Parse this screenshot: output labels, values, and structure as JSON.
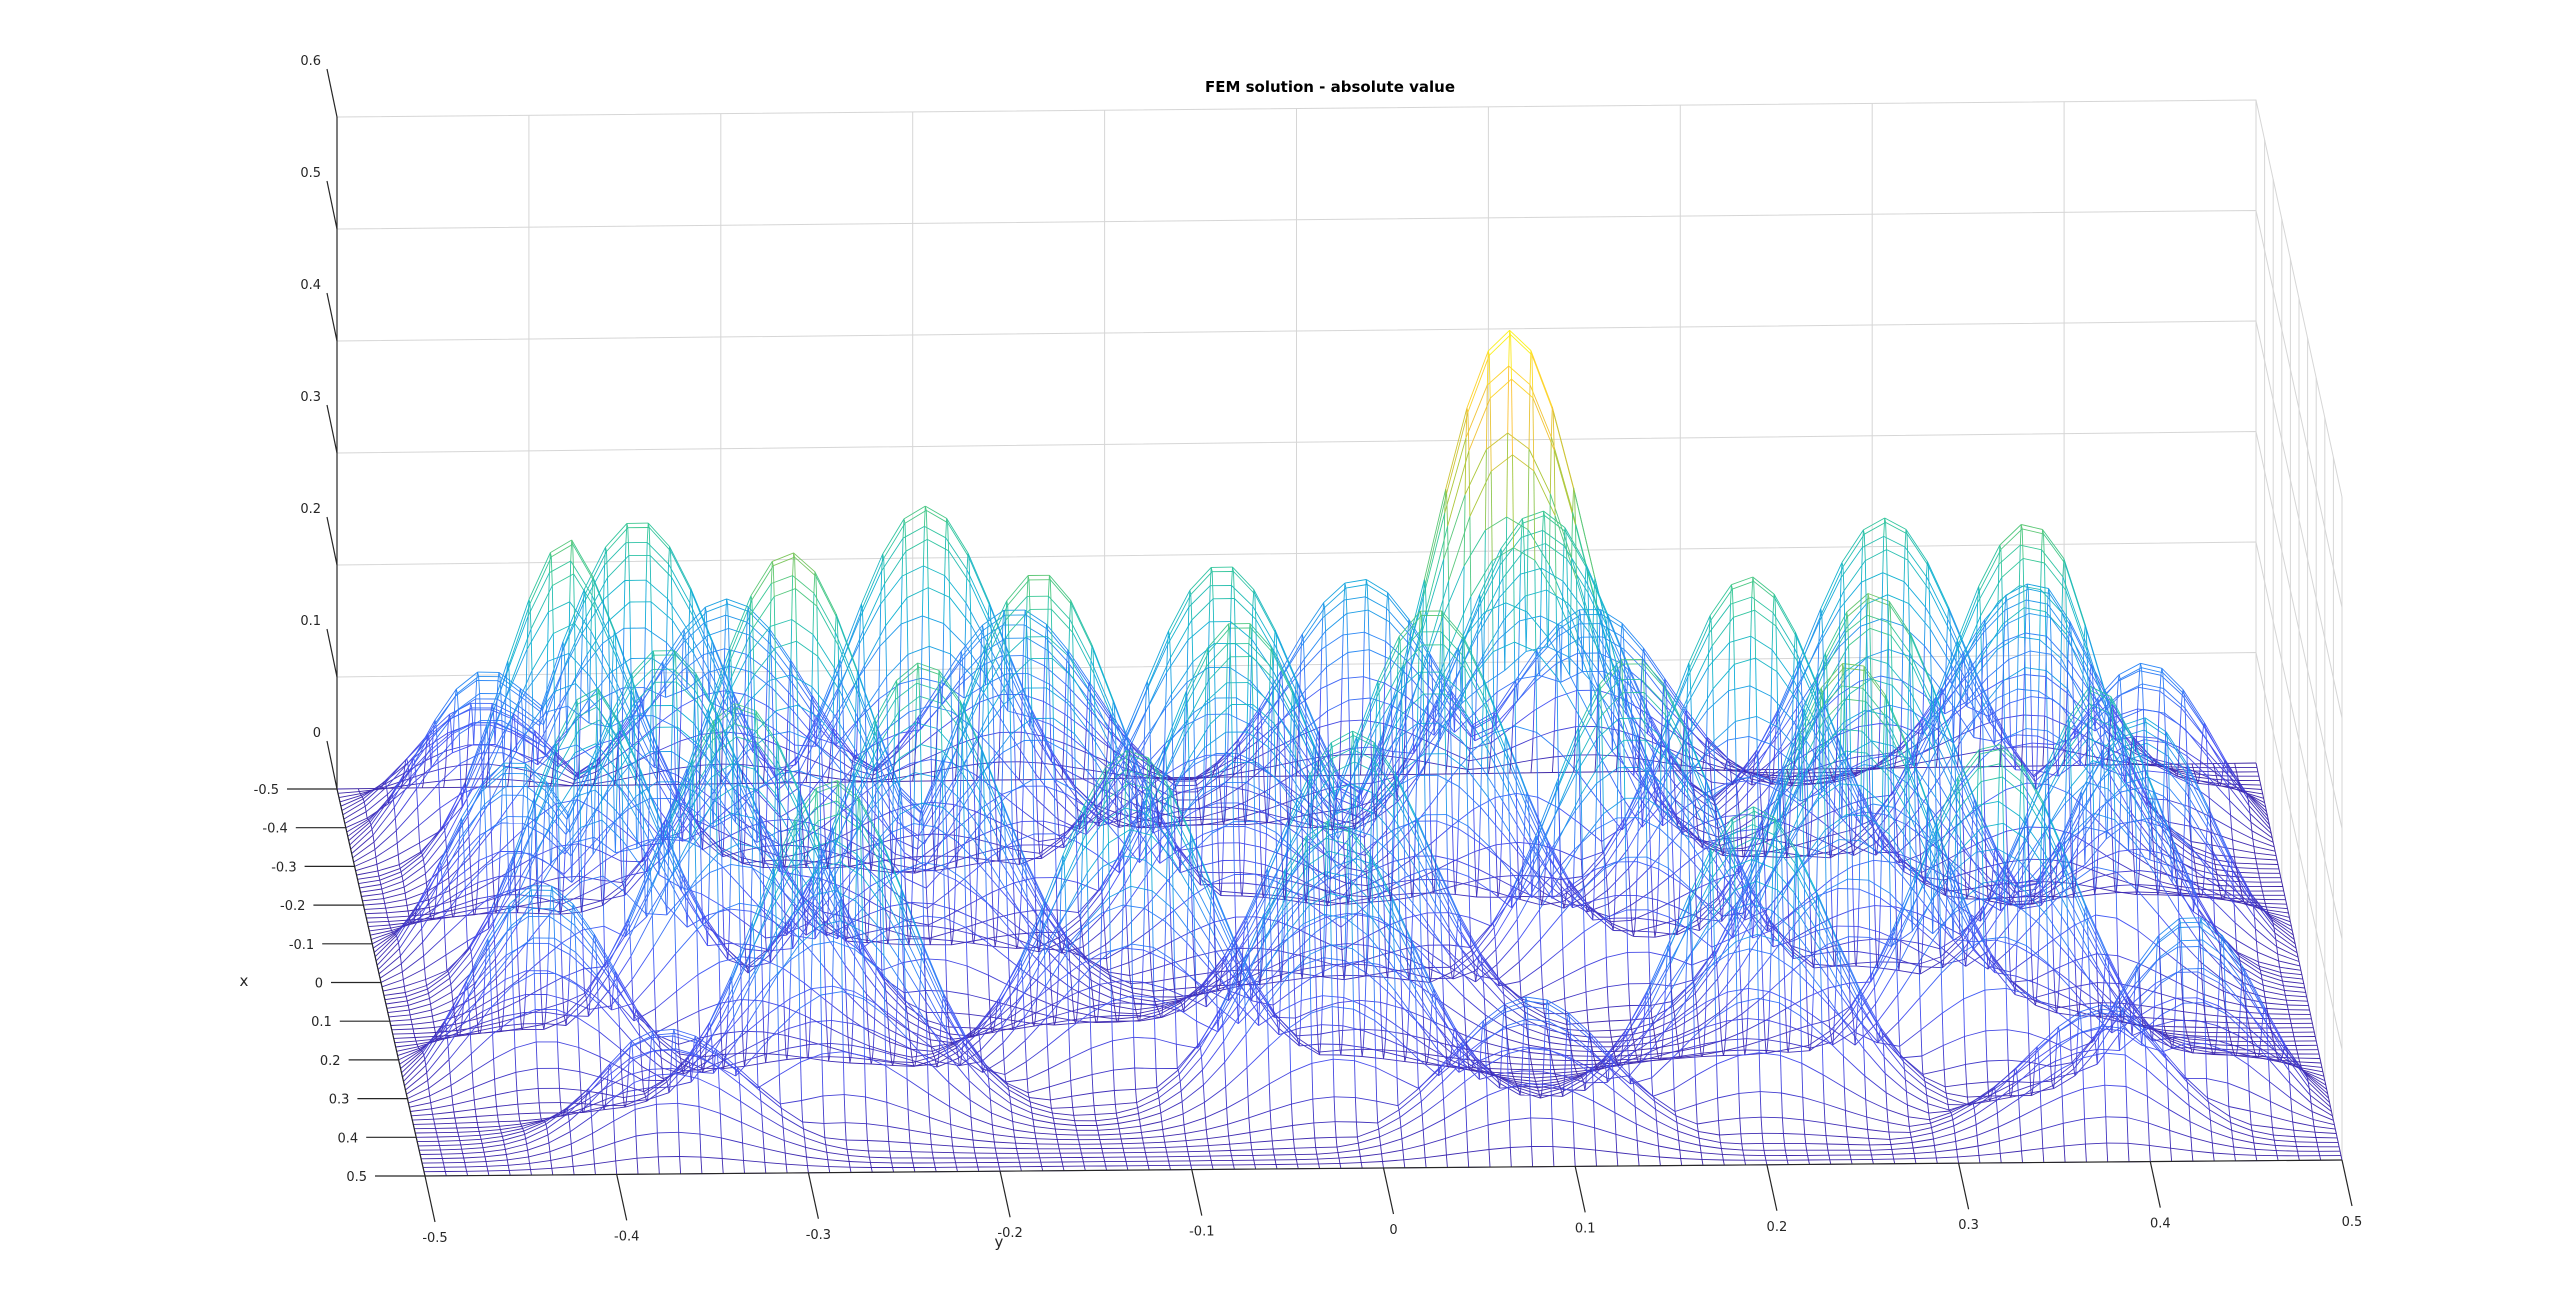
{
  "chart_data": {
    "type": "surface-mesh",
    "title": "FEM solution - absolute value",
    "xlabel": "x",
    "ylabel": "y",
    "zlabel": "",
    "xlim": [
      -0.5,
      0.5
    ],
    "ylim": [
      -0.5,
      0.5
    ],
    "zlim": [
      0,
      0.6
    ],
    "x_ticks": [
      "-0.5",
      "-0.4",
      "-0.3",
      "-0.2",
      "-0.1",
      "0",
      "0.1",
      "0.2",
      "0.3",
      "0.4",
      "0.5"
    ],
    "y_ticks": [
      "-0.5",
      "-0.4",
      "-0.3",
      "-0.2",
      "-0.1",
      "0",
      "0.1",
      "0.2",
      "0.3",
      "0.4",
      "0.5"
    ],
    "z_ticks": [
      "0",
      "0.1",
      "0.2",
      "0.3",
      "0.4",
      "0.5",
      "0.6"
    ],
    "grid": true,
    "colormap": "parula",
    "peaks": [
      {
        "x": -0.45,
        "y": -0.45,
        "z": 0.3
      },
      {
        "x": -0.45,
        "y": -0.3,
        "z": 0.33
      },
      {
        "x": -0.45,
        "y": -0.15,
        "z": 0.31
      },
      {
        "x": -0.45,
        "y": 0.03,
        "z": 0.35
      },
      {
        "x": -0.45,
        "y": 0.15,
        "z": 0.3
      },
      {
        "x": -0.45,
        "y": 0.38,
        "z": 0.33
      },
      {
        "x": -0.35,
        "y": -0.45,
        "z": 0.27
      },
      {
        "x": -0.35,
        "y": -0.35,
        "z": 0.29
      },
      {
        "x": -0.35,
        "y": -0.2,
        "z": 0.3
      },
      {
        "x": -0.35,
        "y": 0.12,
        "z": 0.29
      },
      {
        "x": -0.35,
        "y": 0.3,
        "z": 0.28
      },
      {
        "x": -0.35,
        "y": 0.46,
        "z": 0.29
      },
      {
        "x": -0.25,
        "y": -0.4,
        "z": 0.32
      },
      {
        "x": -0.25,
        "y": -0.05,
        "z": 0.28
      },
      {
        "x": -0.25,
        "y": 0.1,
        "z": 0.49
      },
      {
        "x": -0.25,
        "y": 0.37,
        "z": 0.31
      },
      {
        "x": -0.15,
        "y": -0.28,
        "z": 0.33
      },
      {
        "x": -0.15,
        "y": -0.15,
        "z": 0.31
      },
      {
        "x": -0.15,
        "y": 0.22,
        "z": 0.3
      },
      {
        "x": -0.05,
        "y": -0.45,
        "z": 0.31
      },
      {
        "x": -0.05,
        "y": -0.35,
        "z": 0.28
      },
      {
        "x": -0.05,
        "y": -0.05,
        "z": 0.3
      },
      {
        "x": -0.05,
        "y": 0.05,
        "z": 0.31
      },
      {
        "x": -0.05,
        "y": 0.28,
        "z": 0.32
      },
      {
        "x": -0.05,
        "y": 0.44,
        "z": 0.31
      },
      {
        "x": 0.05,
        "y": -0.4,
        "z": 0.29
      },
      {
        "x": 0.05,
        "y": -0.22,
        "z": 0.3
      },
      {
        "x": 0.05,
        "y": 0.15,
        "z": 0.3
      },
      {
        "x": 0.05,
        "y": 0.4,
        "z": 0.28
      },
      {
        "x": 0.15,
        "y": -0.32,
        "z": 0.3
      },
      {
        "x": 0.15,
        "y": 0.0,
        "z": 0.27
      },
      {
        "x": 0.15,
        "y": 0.26,
        "z": 0.33
      },
      {
        "x": 0.25,
        "y": -0.45,
        "z": 0.3
      },
      {
        "x": 0.25,
        "y": -0.12,
        "z": 0.29
      },
      {
        "x": 0.25,
        "y": 0.33,
        "z": 0.29
      },
      {
        "x": 0.35,
        "y": -0.28,
        "z": 0.3
      },
      {
        "x": 0.35,
        "y": -0.02,
        "z": 0.26
      },
      {
        "x": 0.35,
        "y": 0.2,
        "z": 0.27
      },
      {
        "x": 0.35,
        "y": 0.45,
        "z": 0.29
      },
      {
        "x": 0.45,
        "y": -0.37,
        "z": 0.18
      },
      {
        "x": 0.45,
        "y": 0.08,
        "z": 0.22
      },
      {
        "x": 0.45,
        "y": 0.38,
        "z": 0.2
      }
    ]
  }
}
